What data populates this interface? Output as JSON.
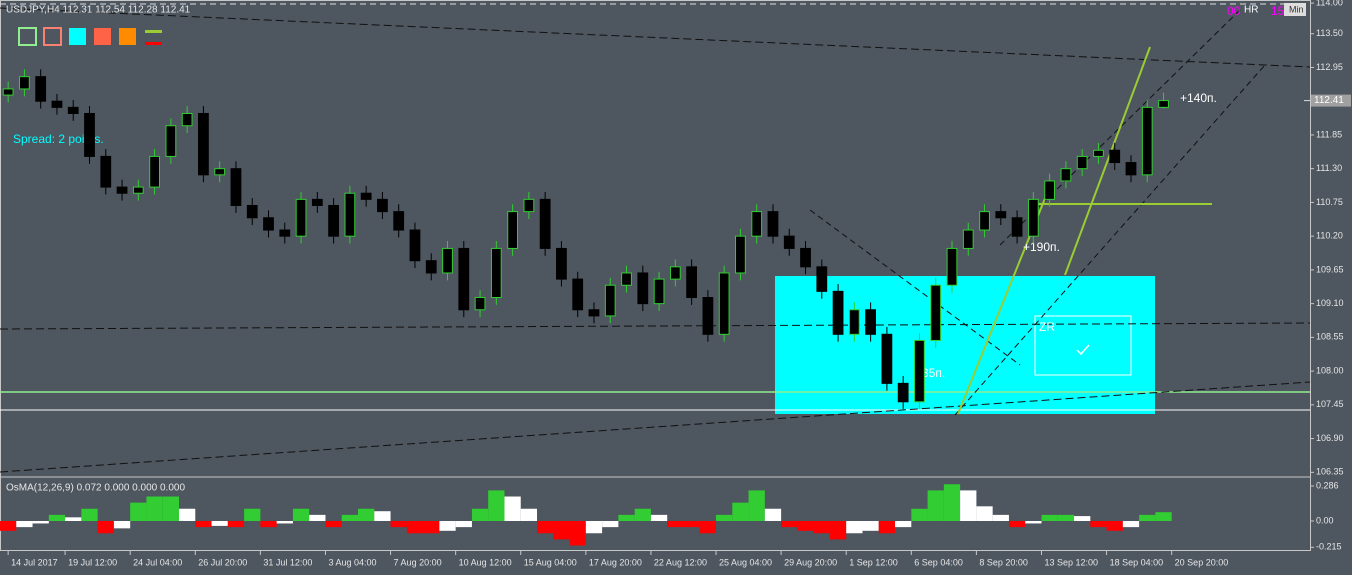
{
  "chart_data": [
    {
      "type": "candlestick",
      "title": "USDJPY,H4  112.31 112.54 112.28 112.41",
      "spread_text": "Spread: 2 points.",
      "annotations": [
        "+140п.",
        "+190п.",
        "-35п.",
        "ZR"
      ],
      "timer": {
        "hours": "00",
        "hours_label": "HR",
        "minutes": "15",
        "minutes_label": "Min"
      },
      "up_color": "#32cd32",
      "down_color": "#000000",
      "body_fill": "#000000",
      "last_price": 112.41,
      "xlim": [
        -0.5,
        80
      ],
      "xticks": [
        {
          "value": 0,
          "label": "14 Jul 2017"
        },
        {
          "value": 3.5,
          "label": "19 Jul 12:00"
        },
        {
          "value": 7.5,
          "label": "24 Jul 04:00"
        },
        {
          "value": 11.5,
          "label": "26 Jul 20:00"
        },
        {
          "value": 15.5,
          "label": "31 Jul 12:00"
        },
        {
          "value": 19.5,
          "label": "3 Aug 04:00"
        },
        {
          "value": 23.5,
          "label": "7 Aug 20:00"
        },
        {
          "value": 27.5,
          "label": "10 Aug 12:00"
        },
        {
          "value": 31.5,
          "label": "15 Aug 04:00"
        },
        {
          "value": 35.5,
          "label": "17 Aug 20:00"
        },
        {
          "value": 39.5,
          "label": "22 Aug 12:00"
        },
        {
          "value": 43.5,
          "label": "25 Aug 04:00"
        },
        {
          "value": 47.5,
          "label": "29 Aug 20:00"
        },
        {
          "value": 51.5,
          "label": "1 Sep 12:00"
        },
        {
          "value": 55.5,
          "label": "6 Sep 04:00"
        },
        {
          "value": 59.5,
          "label": "8 Sep 20:00"
        },
        {
          "value": 63.5,
          "label": "13 Sep 12:00"
        },
        {
          "value": 67.5,
          "label": "18 Sep 04:00"
        },
        {
          "value": 71.5,
          "label": "20 Sep 20:00"
        }
      ],
      "ylim": [
        106.29,
        114.05
      ],
      "yticks": [
        {
          "value": 114,
          "label": "114.00"
        },
        {
          "value": 113.5,
          "label": "113.50"
        },
        112.95,
        111.85,
        {
          "value": 111.3,
          "label": "111.30"
        },
        110.75,
        {
          "value": 110.2,
          "label": "110.20"
        },
        109.65,
        {
          "value": 109.1,
          "label": "109.10"
        },
        108.55,
        {
          "value": 108,
          "label": "108.00"
        },
        107.45,
        {
          "value": 106.9,
          "label": "106.90"
        },
        106.35
      ],
      "ohlc": [
        [
          112.5,
          112.72,
          112.38,
          112.6
        ],
        [
          112.6,
          112.92,
          112.48,
          112.8
        ],
        [
          112.8,
          112.92,
          112.28,
          112.4
        ],
        [
          112.4,
          112.52,
          112.18,
          112.3
        ],
        [
          112.3,
          112.42,
          112.08,
          112.2
        ],
        [
          112.2,
          112.32,
          111.38,
          111.5
        ],
        [
          111.5,
          111.62,
          110.88,
          111.0
        ],
        [
          111.0,
          111.12,
          110.78,
          110.9
        ],
        [
          110.9,
          111.12,
          110.78,
          111.0
        ],
        [
          111.0,
          111.62,
          110.88,
          111.5
        ],
        [
          111.5,
          112.12,
          111.38,
          112.0
        ],
        [
          112.0,
          112.32,
          111.88,
          112.2
        ],
        [
          112.2,
          112.32,
          111.08,
          111.2
        ],
        [
          111.2,
          111.42,
          111.08,
          111.3
        ],
        [
          111.3,
          111.42,
          110.58,
          110.7
        ],
        [
          110.7,
          110.82,
          110.38,
          110.5
        ],
        [
          110.5,
          110.62,
          110.18,
          110.3
        ],
        [
          110.3,
          110.42,
          110.08,
          110.2
        ],
        [
          110.2,
          110.92,
          110.08,
          110.8
        ],
        [
          110.8,
          110.92,
          110.58,
          110.7
        ],
        [
          110.7,
          110.82,
          110.08,
          110.2
        ],
        [
          110.2,
          111.02,
          110.08,
          110.9
        ],
        [
          110.9,
          111.02,
          110.68,
          110.8
        ],
        [
          110.8,
          110.92,
          110.48,
          110.6
        ],
        [
          110.6,
          110.72,
          110.18,
          110.3
        ],
        [
          110.3,
          110.42,
          109.68,
          109.8
        ],
        [
          109.8,
          109.92,
          109.48,
          109.6
        ],
        [
          109.6,
          110.12,
          109.48,
          110.0
        ],
        [
          110.0,
          110.12,
          108.88,
          109.0
        ],
        [
          109.0,
          109.32,
          108.88,
          109.2
        ],
        [
          109.2,
          110.12,
          109.08,
          110.0
        ],
        [
          110.0,
          110.72,
          109.88,
          110.6
        ],
        [
          110.6,
          110.92,
          110.48,
          110.8
        ],
        [
          110.8,
          110.92,
          109.88,
          110.0
        ],
        [
          110.0,
          110.12,
          109.38,
          109.5
        ],
        [
          109.5,
          109.62,
          108.88,
          109.0
        ],
        [
          109.0,
          109.12,
          108.78,
          108.9
        ],
        [
          108.9,
          109.52,
          108.78,
          109.4
        ],
        [
          109.4,
          109.72,
          109.28,
          109.6
        ],
        [
          109.6,
          109.72,
          108.98,
          109.1
        ],
        [
          109.1,
          109.62,
          108.98,
          109.5
        ],
        [
          109.5,
          109.82,
          109.38,
          109.7
        ],
        [
          109.7,
          109.82,
          109.08,
          109.2
        ],
        [
          109.2,
          109.32,
          108.48,
          108.6
        ],
        [
          108.6,
          109.72,
          108.48,
          109.6
        ],
        [
          109.6,
          110.32,
          109.48,
          110.2
        ],
        [
          110.2,
          110.72,
          110.08,
          110.6
        ],
        [
          110.6,
          110.72,
          110.08,
          110.2
        ],
        [
          110.2,
          110.32,
          109.88,
          110.0
        ],
        [
          110.0,
          110.12,
          109.58,
          109.7
        ],
        [
          109.7,
          109.82,
          109.18,
          109.3
        ],
        [
          109.3,
          109.42,
          108.48,
          108.6
        ],
        [
          108.6,
          109.12,
          108.48,
          109.0
        ],
        [
          109.0,
          109.12,
          108.48,
          108.6
        ],
        [
          108.6,
          108.72,
          107.68,
          107.8
        ],
        [
          107.8,
          107.92,
          107.38,
          107.5
        ],
        [
          107.5,
          108.62,
          107.38,
          108.5
        ],
        [
          108.5,
          109.52,
          108.38,
          109.4
        ],
        [
          109.4,
          110.12,
          109.28,
          110.0
        ],
        [
          110.0,
          110.42,
          109.88,
          110.3
        ],
        [
          110.3,
          110.72,
          110.18,
          110.6
        ],
        [
          110.6,
          110.72,
          110.38,
          110.5
        ],
        [
          110.5,
          110.62,
          110.08,
          110.2
        ],
        [
          110.2,
          110.92,
          110.08,
          110.8
        ],
        [
          110.8,
          111.22,
          110.68,
          111.1
        ],
        [
          111.1,
          111.42,
          110.98,
          111.3
        ],
        [
          111.3,
          111.62,
          111.18,
          111.5
        ],
        [
          111.5,
          111.72,
          111.38,
          111.6
        ],
        [
          111.6,
          111.72,
          111.28,
          111.4
        ],
        [
          111.4,
          111.52,
          111.08,
          111.2
        ],
        [
          111.2,
          112.42,
          111.08,
          112.3
        ],
        [
          112.3,
          112.54,
          112.28,
          112.41
        ]
      ]
    },
    {
      "type": "histogram",
      "title": "OsMA(12,26,9) 0.072 0.000 0.000 0.000",
      "colors": {
        "rise_positive": "#32cd32",
        "fall_positive": "#ffffff",
        "fall_negative": "#ff0000",
        "rise_negative": "#ffffff"
      },
      "xlim": [
        -0.5,
        80
      ],
      "ylim": [
        -0.245,
        0.343
      ],
      "yticks": [
        0.286,
        {
          "value": 0,
          "label": "0.00"
        },
        -0.215
      ],
      "values": [
        -0.08,
        -0.05,
        -0.02,
        0.05,
        0.03,
        0.1,
        -0.1,
        -0.06,
        0.15,
        0.2,
        0.2,
        0.1,
        -0.05,
        -0.04,
        -0.05,
        0.1,
        -0.05,
        -0.02,
        0.1,
        0.05,
        -0.05,
        0.05,
        0.1,
        0.08,
        -0.05,
        -0.1,
        -0.1,
        -0.08,
        -0.05,
        0.1,
        0.25,
        0.2,
        0.1,
        -0.1,
        -0.15,
        -0.2,
        -0.1,
        -0.05,
        0.05,
        0.1,
        0.05,
        -0.05,
        -0.05,
        -0.1,
        0.05,
        0.15,
        0.25,
        0.1,
        -0.05,
        -0.08,
        -0.1,
        -0.15,
        -0.1,
        -0.08,
        -0.1,
        -0.05,
        0.1,
        0.25,
        0.3,
        0.25,
        0.12,
        0.05,
        -0.05,
        -0.02,
        0.05,
        0.05,
        0.04,
        -0.05,
        -0.08,
        -0.05,
        0.05,
        0.072
      ]
    }
  ]
}
